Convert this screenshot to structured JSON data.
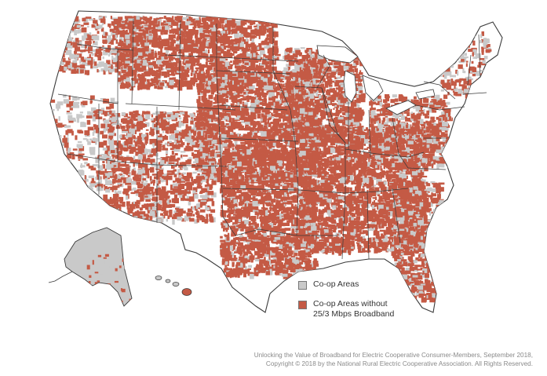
{
  "map": {
    "colors": {
      "coop_area": "#c9c9c9",
      "coop_no_broadband": "#c45a45",
      "state_border": "#3a3a3a",
      "land": "#ffffff"
    }
  },
  "legend": {
    "items": [
      {
        "label": "Co-op Areas",
        "color": "#c9c9c9"
      },
      {
        "label": "Co-op Areas without\n25/3 Mbps Broadband",
        "color": "#c45a45"
      }
    ]
  },
  "credit": {
    "line1": "Unlocking the Value of Broadband for Electric Cooperative Consumer-Members, September 2018,",
    "line2": "Copyright © 2018 by the National Rural Electric Cooperative Association. All Rights Reserved."
  }
}
